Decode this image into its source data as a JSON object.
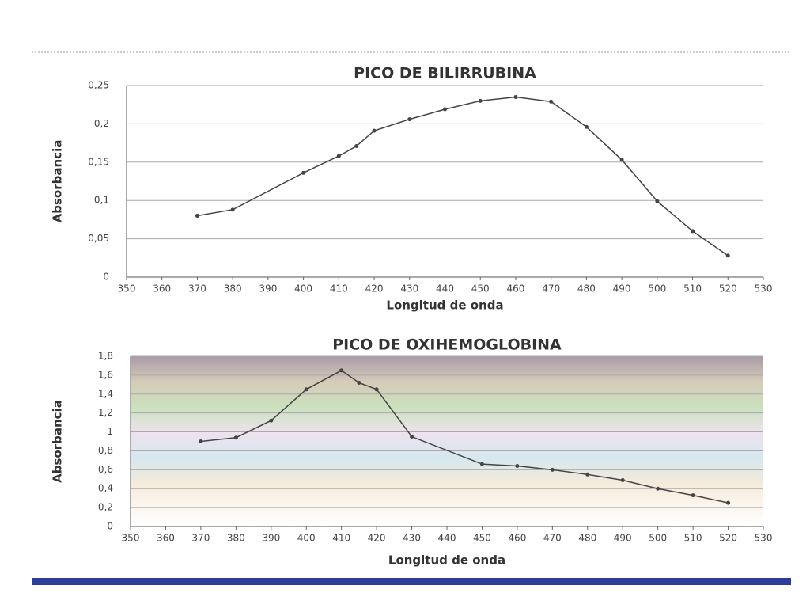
{
  "chart_data": [
    {
      "type": "line",
      "title": "PICO DE BILIRRUBINA",
      "x_label": "Longitud de onda",
      "y_label": "Absorbancia",
      "x": [
        370,
        380,
        400,
        410,
        415,
        420,
        430,
        440,
        450,
        460,
        470,
        480,
        490,
        500,
        510,
        520
      ],
      "values": [
        0.08,
        0.088,
        0.136,
        0.158,
        0.171,
        0.191,
        0.206,
        0.219,
        0.23,
        0.235,
        0.229,
        0.196,
        0.153,
        0.099,
        0.06,
        0.028
      ],
      "color": "#444444",
      "xlim": [
        350,
        530
      ],
      "xticks": [
        350,
        360,
        370,
        380,
        390,
        400,
        410,
        420,
        430,
        440,
        450,
        460,
        470,
        480,
        490,
        500,
        510,
        520,
        530
      ],
      "ylim": [
        0,
        0.25
      ],
      "yticks": [
        0,
        {
          "value": 0.05,
          "label": "0,05"
        },
        {
          "value": 0.1,
          "label": "0,1"
        },
        {
          "value": 0.15,
          "label": "0,15"
        },
        {
          "value": 0.2,
          "label": "0,2"
        },
        {
          "value": 0.25,
          "label": "0,25"
        }
      ],
      "grid": true
    },
    {
      "type": "line",
      "title": "PICO DE OXIHEMOGLOBINA",
      "x_label": "Longitud de onda",
      "y_label": "Absorbancia",
      "x": [
        370,
        380,
        390,
        400,
        410,
        415,
        420,
        430,
        450,
        460,
        470,
        480,
        490,
        500,
        510,
        520
      ],
      "values": [
        0.9,
        0.94,
        1.12,
        1.45,
        1.65,
        1.52,
        1.45,
        0.95,
        0.66,
        0.64,
        0.6,
        0.55,
        0.49,
        0.4,
        0.33,
        0.25
      ],
      "color": "#444444",
      "xlim": [
        350,
        530
      ],
      "xticks": [
        350,
        360,
        370,
        380,
        390,
        400,
        410,
        420,
        430,
        440,
        450,
        460,
        470,
        480,
        490,
        500,
        510,
        520,
        530
      ],
      "ylim": [
        0,
        1.8
      ],
      "yticks": [
        0,
        {
          "value": 0.2,
          "label": "0,2"
        },
        {
          "value": 0.4,
          "label": "0,4"
        },
        {
          "value": 0.6,
          "label": "0,6"
        },
        {
          "value": 0.8,
          "label": "0,8"
        },
        1,
        {
          "value": 1.2,
          "label": "1,2"
        },
        {
          "value": 1.4,
          "label": "1,4"
        },
        {
          "value": 1.6,
          "label": "1,6"
        },
        {
          "value": 1.8,
          "label": "1,8"
        }
      ],
      "grid": true
    }
  ]
}
